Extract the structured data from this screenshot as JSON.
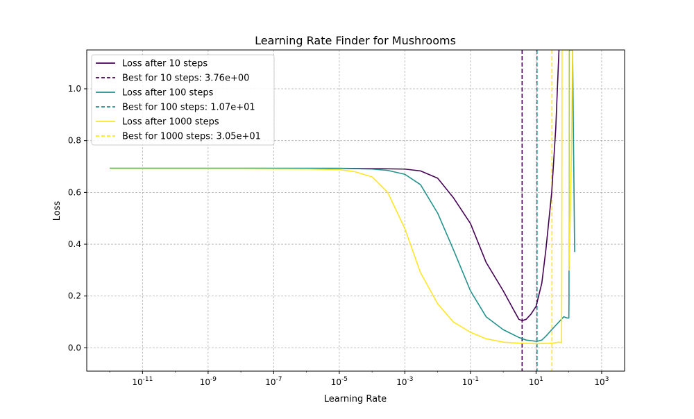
{
  "chart_data": {
    "type": "line",
    "title": "Learning Rate Finder for Mushrooms",
    "xlabel": "Learning Rate",
    "ylabel": "Loss",
    "xscale": "log",
    "xlim_log10": [
      -12.7,
      3.7
    ],
    "ylim": [
      -0.09,
      1.15
    ],
    "yticks": [
      0.0,
      0.2,
      0.4,
      0.6,
      0.8,
      1.0
    ],
    "ytick_labels": [
      "0.0",
      "0.2",
      "0.4",
      "0.6",
      "0.8",
      "1.0"
    ],
    "xtick_exponents": [
      "-11",
      "-9",
      "-7",
      "-5",
      "-3",
      "-1",
      "1",
      "3"
    ],
    "xtick_base": "10",
    "grid": true,
    "legend_position": "upper-left",
    "series": [
      {
        "name": "Loss after 10 steps",
        "color": "#440154",
        "style": "solid",
        "points": [
          [
            1e-12,
            0.693
          ],
          [
            1e-08,
            0.693
          ],
          [
            1e-05,
            0.693
          ],
          [
            0.0001,
            0.692
          ],
          [
            0.001,
            0.69
          ],
          [
            0.003,
            0.683
          ],
          [
            0.01,
            0.655
          ],
          [
            0.03,
            0.58
          ],
          [
            0.1,
            0.48
          ],
          [
            0.3,
            0.33
          ],
          [
            1,
            0.22
          ],
          [
            2,
            0.15
          ],
          [
            3,
            0.11
          ],
          [
            3.76,
            0.105
          ],
          [
            5,
            0.11
          ],
          [
            7,
            0.13
          ],
          [
            10,
            0.16
          ],
          [
            15,
            0.25
          ],
          [
            20,
            0.38
          ],
          [
            30,
            0.6
          ],
          [
            40,
            0.85
          ],
          [
            50,
            1.15
          ]
        ]
      },
      {
        "name": "Loss after 100 steps",
        "color": "#21918c",
        "style": "solid",
        "points": [
          [
            1e-12,
            0.693
          ],
          [
            1e-08,
            0.693
          ],
          [
            1e-05,
            0.693
          ],
          [
            0.0001,
            0.69
          ],
          [
            0.0003,
            0.685
          ],
          [
            0.001,
            0.67
          ],
          [
            0.003,
            0.63
          ],
          [
            0.01,
            0.52
          ],
          [
            0.03,
            0.38
          ],
          [
            0.1,
            0.22
          ],
          [
            0.3,
            0.12
          ],
          [
            1,
            0.07
          ],
          [
            3,
            0.04
          ],
          [
            5,
            0.03
          ],
          [
            10.7,
            0.025
          ],
          [
            15,
            0.03
          ],
          [
            20,
            0.045
          ],
          [
            30,
            0.07
          ],
          [
            50,
            0.1
          ],
          [
            70,
            0.12
          ],
          [
            90,
            0.115
          ],
          [
            100,
            0.115
          ],
          [
            101,
            0.17
          ],
          [
            101.5,
            0.5
          ],
          [
            102,
            1.15
          ],
          [
            110,
            1.15
          ],
          [
            120,
            1.15
          ],
          [
            130,
            1.15
          ],
          [
            150,
            0.37
          ]
        ]
      },
      {
        "name": "Loss after 1000 steps",
        "color": "#fde725",
        "style": "solid",
        "points": [
          [
            1e-12,
            0.691
          ],
          [
            1e-08,
            0.691
          ],
          [
            1e-06,
            0.69
          ],
          [
            1e-05,
            0.688
          ],
          [
            3e-05,
            0.68
          ],
          [
            0.0001,
            0.66
          ],
          [
            0.0003,
            0.6
          ],
          [
            0.001,
            0.46
          ],
          [
            0.003,
            0.29
          ],
          [
            0.01,
            0.17
          ],
          [
            0.03,
            0.1
          ],
          [
            0.1,
            0.06
          ],
          [
            0.3,
            0.035
          ],
          [
            1,
            0.022
          ],
          [
            3,
            0.018
          ],
          [
            10,
            0.016
          ],
          [
            20,
            0.017
          ],
          [
            30.5,
            0.018
          ],
          [
            40,
            0.02
          ],
          [
            50,
            0.022
          ],
          [
            60,
            0.02
          ],
          [
            61,
            0.3
          ],
          [
            62,
            1.15
          ],
          [
            70,
            1.15
          ],
          [
            80,
            1.15
          ],
          [
            90,
            1.15
          ],
          [
            100,
            1.15
          ],
          [
            101,
            0.3
          ],
          [
            110,
            0.5
          ],
          [
            120,
            0.75
          ],
          [
            130,
            1.15
          ]
        ]
      }
    ],
    "best_lines": [
      {
        "name": "Best for 10 steps: 3.76e+00",
        "x": 3.76,
        "color": "#440154",
        "style": "dashed"
      },
      {
        "name": "Best for 100 steps: 1.07e+01",
        "x": 10.7,
        "color": "#21918c",
        "style": "dashed"
      },
      {
        "name": "Best for 1000 steps: 3.05e+01",
        "x": 30.5,
        "color": "#fde725",
        "style": "dashed"
      }
    ],
    "legend_entries": [
      {
        "label": "Loss after 10 steps",
        "color": "#440154",
        "style": "solid"
      },
      {
        "label": "Best for 10 steps: 3.76e+00",
        "color": "#440154",
        "style": "dashed"
      },
      {
        "label": "Loss after 100 steps",
        "color": "#21918c",
        "style": "solid"
      },
      {
        "label": "Best for 100 steps: 1.07e+01",
        "color": "#21918c",
        "style": "dashed"
      },
      {
        "label": "Loss after 1000 steps",
        "color": "#fde725",
        "style": "solid"
      },
      {
        "label": "Best for 1000 steps: 3.05e+01",
        "color": "#fde725",
        "style": "dashed"
      }
    ]
  }
}
